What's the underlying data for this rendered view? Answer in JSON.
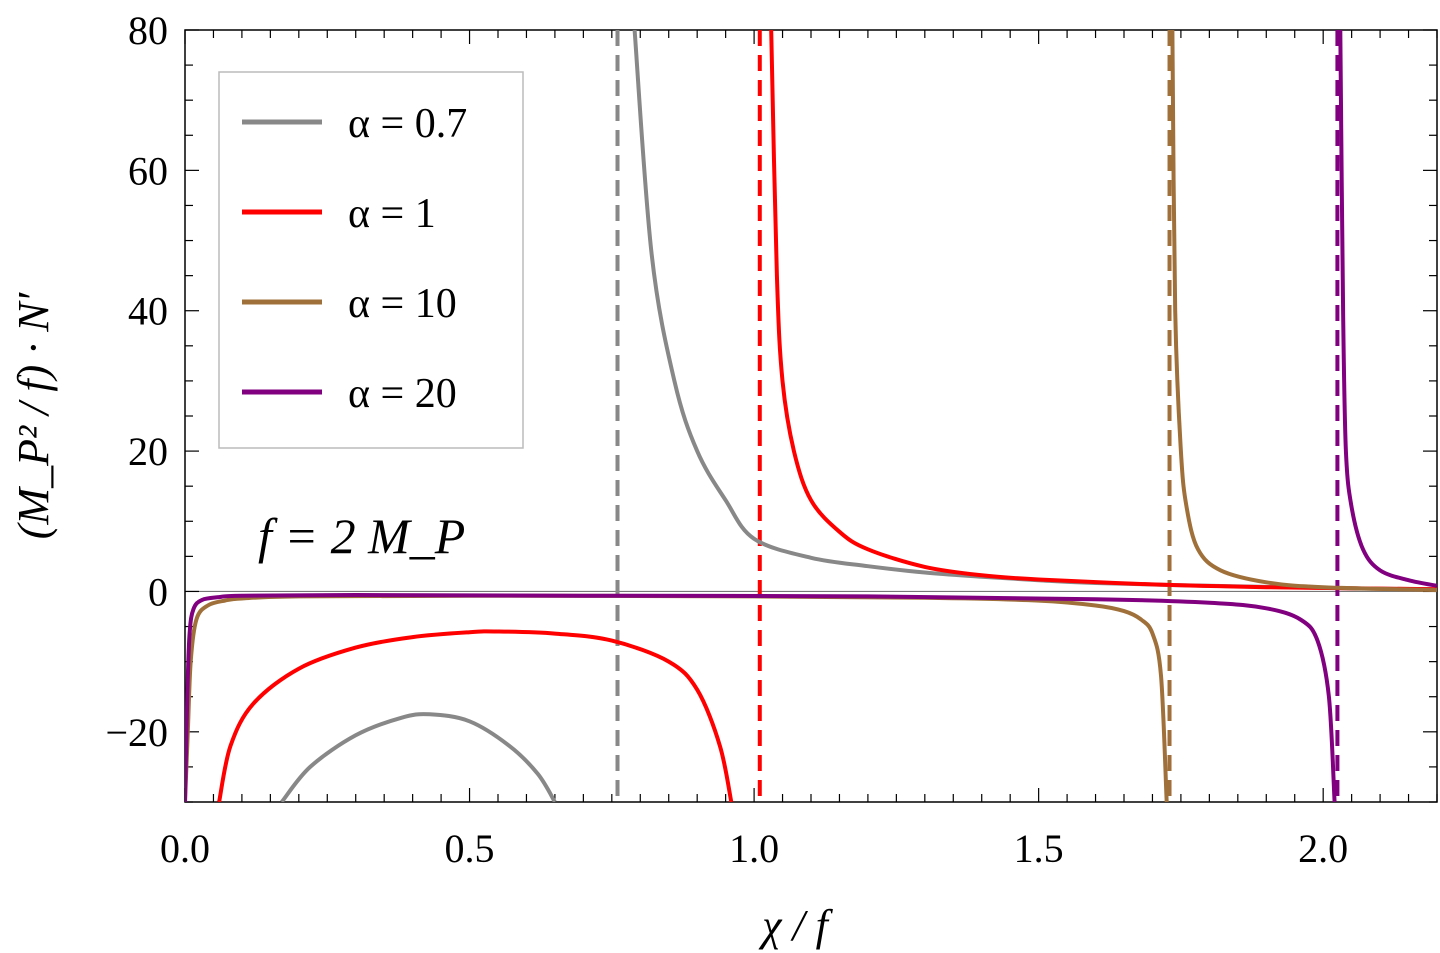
{
  "chart_data": {
    "type": "line",
    "title": "",
    "xlabel": "χ / f",
    "ylabel": "(M_P² / f) · N′",
    "xlim": [
      0,
      2.2
    ],
    "ylim": [
      -30,
      80
    ],
    "x_ticks": [
      0.0,
      0.5,
      1.0,
      1.5,
      2.0
    ],
    "x_tick_labels": [
      "0.0",
      "0.5",
      "1.0",
      "1.5",
      "2.0"
    ],
    "y_ticks": [
      -20,
      0,
      20,
      40,
      60,
      80
    ],
    "y_tick_labels": [
      "−20",
      "0",
      "20",
      "40",
      "60",
      "80"
    ],
    "grid": false,
    "legend_position": "top-left",
    "annotation": "f = 2 M_P",
    "series": [
      {
        "name": "α = 0.7",
        "color": "#888888",
        "asymptote": 0.76,
        "x": [
          0.17,
          0.22,
          0.3,
          0.38,
          0.43,
          0.5,
          0.57,
          0.62,
          0.65,
          0.79,
          0.82,
          0.86,
          0.9,
          0.95,
          1.0,
          1.1,
          1.2,
          1.3,
          1.4,
          1.5,
          1.6,
          1.8,
          2.0,
          2.2
        ],
        "y": [
          -30,
          -25,
          -20.5,
          -18,
          -17.5,
          -18.5,
          -22,
          -26,
          -30,
          80,
          48,
          30,
          20,
          13,
          7.5,
          4.8,
          3.6,
          2.7,
          2.1,
          1.6,
          1.2,
          0.8,
          0.5,
          0.3
        ]
      },
      {
        "name": "α = 1",
        "color": "#ff0000",
        "asymptote": 1.01,
        "x": [
          0.06,
          0.08,
          0.12,
          0.2,
          0.3,
          0.4,
          0.5,
          0.55,
          0.65,
          0.75,
          0.85,
          0.9,
          0.94,
          0.96,
          1.03,
          1.04,
          1.05,
          1.07,
          1.1,
          1.15,
          1.2,
          1.3,
          1.4,
          1.5,
          1.7,
          1.9,
          2.1,
          2.2
        ],
        "y": [
          -30,
          -22,
          -16,
          -11,
          -8,
          -6.5,
          -5.8,
          -5.7,
          -6,
          -7,
          -10,
          -14,
          -22,
          -30,
          80,
          45,
          30,
          20,
          13,
          8.5,
          6,
          3.5,
          2.3,
          1.7,
          1.0,
          0.6,
          0.4,
          0.3
        ]
      },
      {
        "name": "α = 10",
        "color": "#a0703a",
        "asymptote": 1.73,
        "x": [
          0.0,
          0.005,
          0.01,
          0.02,
          0.04,
          0.07,
          0.1,
          0.2,
          0.5,
          1.0,
          1.3,
          1.5,
          1.6,
          1.65,
          1.68,
          1.7,
          1.715,
          1.725,
          1.735,
          1.74,
          1.75,
          1.76,
          1.78,
          1.82,
          1.9,
          2.0,
          2.2
        ],
        "y": [
          -30,
          -20,
          -10,
          -4,
          -2,
          -1.3,
          -1.0,
          -0.7,
          -0.6,
          -0.7,
          -0.9,
          -1.3,
          -2.0,
          -2.8,
          -4,
          -6,
          -12,
          -30,
          80,
          40,
          20,
          12,
          6,
          3,
          1.3,
          0.6,
          0.2
        ]
      },
      {
        "name": "α = 20",
        "color": "#800080",
        "asymptote": 2.025,
        "x": [
          0.0,
          0.004,
          0.008,
          0.015,
          0.03,
          0.06,
          0.1,
          0.3,
          0.7,
          1.2,
          1.6,
          1.8,
          1.9,
          1.96,
          1.99,
          2.01,
          2.02,
          2.03,
          2.035,
          2.04,
          2.05,
          2.07,
          2.1,
          2.15,
          2.2
        ],
        "y": [
          -30,
          -15,
          -6,
          -2.5,
          -1.2,
          -0.8,
          -0.6,
          -0.5,
          -0.6,
          -0.7,
          -1.1,
          -1.6,
          -2.4,
          -4,
          -7,
          -15,
          -30,
          80,
          40,
          20,
          12,
          6,
          3,
          1.6,
          0.8
        ]
      }
    ]
  }
}
